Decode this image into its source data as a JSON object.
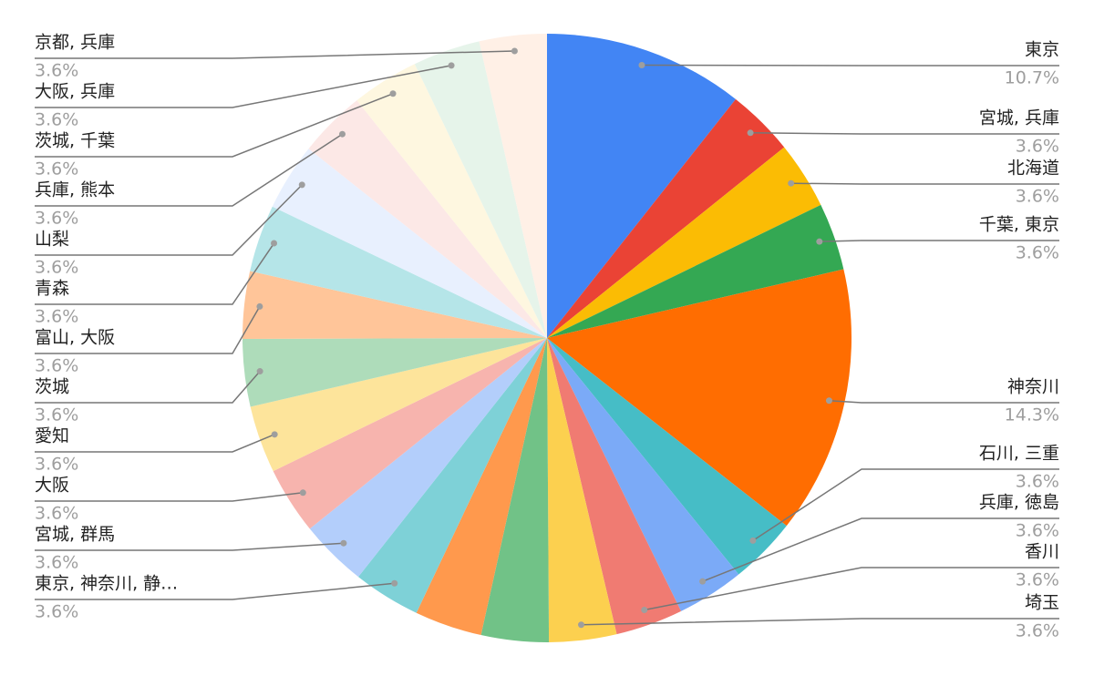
{
  "chart_data": {
    "type": "pie",
    "categories": [
      "東京",
      "宮城, 兵庫",
      "北海道",
      "千葉, 東京",
      "神奈川",
      "石川, 三重",
      "兵庫, 徳島",
      "香川",
      "埼玉",
      null,
      null,
      "東京, 神奈川, 静…",
      "宮城, 群馬",
      "大阪",
      "愛知",
      "茨城",
      "富山, 大阪",
      "青森",
      "山梨",
      "兵庫, 熊本",
      "茨城, 千葉",
      "大阪, 兵庫",
      "京都, 兵庫"
    ],
    "values": [
      10.7,
      3.6,
      3.6,
      3.6,
      14.3,
      3.6,
      3.6,
      3.6,
      3.6,
      3.6,
      3.6,
      3.6,
      3.6,
      3.6,
      3.6,
      3.6,
      3.6,
      3.6,
      3.6,
      3.6,
      3.6,
      3.6,
      3.6
    ],
    "value_labels": [
      "10.7%",
      "3.6%",
      "3.6%",
      "3.6%",
      "14.3%",
      "3.6%",
      "3.6%",
      "3.6%",
      "3.6%",
      null,
      null,
      "3.6%",
      "3.6%",
      "3.6%",
      "3.6%",
      "3.6%",
      "3.6%",
      "3.6%",
      "3.6%",
      "3.6%",
      "3.6%",
      "3.6%",
      "3.6%"
    ],
    "colors": [
      "#4285f4",
      "#ea4335",
      "#fbbc04",
      "#34a853",
      "#ff6d01",
      "#46bdc6",
      "#7baaf7",
      "#f07b72",
      "#fcd04f",
      "#71c287",
      "#ff994d",
      "#7ed1d7",
      "#b3cefb",
      "#f7b4ae",
      "#fde49b",
      "#aedcba",
      "#ffc599",
      "#b5e5e8",
      "#e8f0fe",
      "#fce8e6",
      "#fef7e0",
      "#e6f4ea",
      "#fff0e6"
    ]
  }
}
